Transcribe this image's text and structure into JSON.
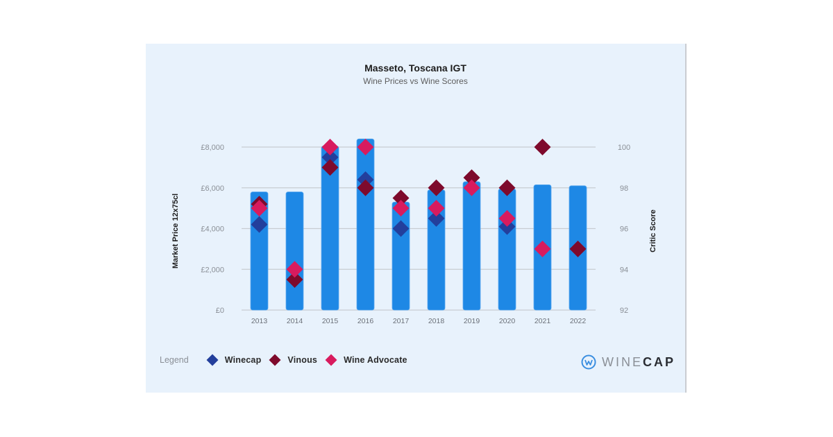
{
  "chart_data": {
    "type": "bar",
    "title": "Masseto, Toscana IGT",
    "subtitle": "Wine Prices vs Wine Scores",
    "xlabel": "",
    "ylabel": "Market Price 12x75cl",
    "y2label": "Critic Score",
    "categories": [
      "2013",
      "2014",
      "2015",
      "2016",
      "2017",
      "2018",
      "2019",
      "2020",
      "2021",
      "2022"
    ],
    "bar_series": {
      "name": "Market Price 12x75cl",
      "color": "#1e88e5",
      "values": [
        5800,
        5800,
        8050,
        8400,
        5300,
        5900,
        6300,
        5950,
        6150,
        6100
      ]
    },
    "series": [
      {
        "name": "Winecap",
        "axis": "right",
        "marker": "diamond",
        "color": "#233f9c",
        "values": [
          96.2,
          null,
          99.5,
          98.4,
          96,
          96.5,
          null,
          96.1,
          null,
          null
        ]
      },
      {
        "name": "Vinous",
        "axis": "right",
        "marker": "diamond",
        "color": "#7e0a2c",
        "values": [
          97.2,
          93.5,
          99,
          98,
          97.5,
          98,
          98.5,
          98,
          100,
          95
        ]
      },
      {
        "name": "Wine Advocate",
        "axis": "right",
        "marker": "diamond",
        "color": "#d81b5e",
        "values": [
          97,
          94,
          100,
          100,
          97,
          97,
          98,
          96.5,
          95,
          null
        ]
      }
    ],
    "ylim": [
      0,
      8000
    ],
    "y2lim": [
      92,
      100
    ],
    "yticks": [
      "£0",
      "£2,000",
      "£4,000",
      "£6,000",
      "£8,000"
    ],
    "y2ticks": [
      "92",
      "94",
      "96",
      "98",
      "100"
    ],
    "grid": true,
    "legend_position": "bottom-left"
  },
  "legend": {
    "title": "Legend",
    "items": [
      {
        "label": "Winecap",
        "color": "#233f9c"
      },
      {
        "label": "Vinous",
        "color": "#7e0a2c"
      },
      {
        "label": "Wine Advocate",
        "color": "#d81b5e"
      }
    ]
  },
  "logo": {
    "text_light": "WINE",
    "text_bold": "CAP",
    "icon": "winecap-logo-icon"
  }
}
